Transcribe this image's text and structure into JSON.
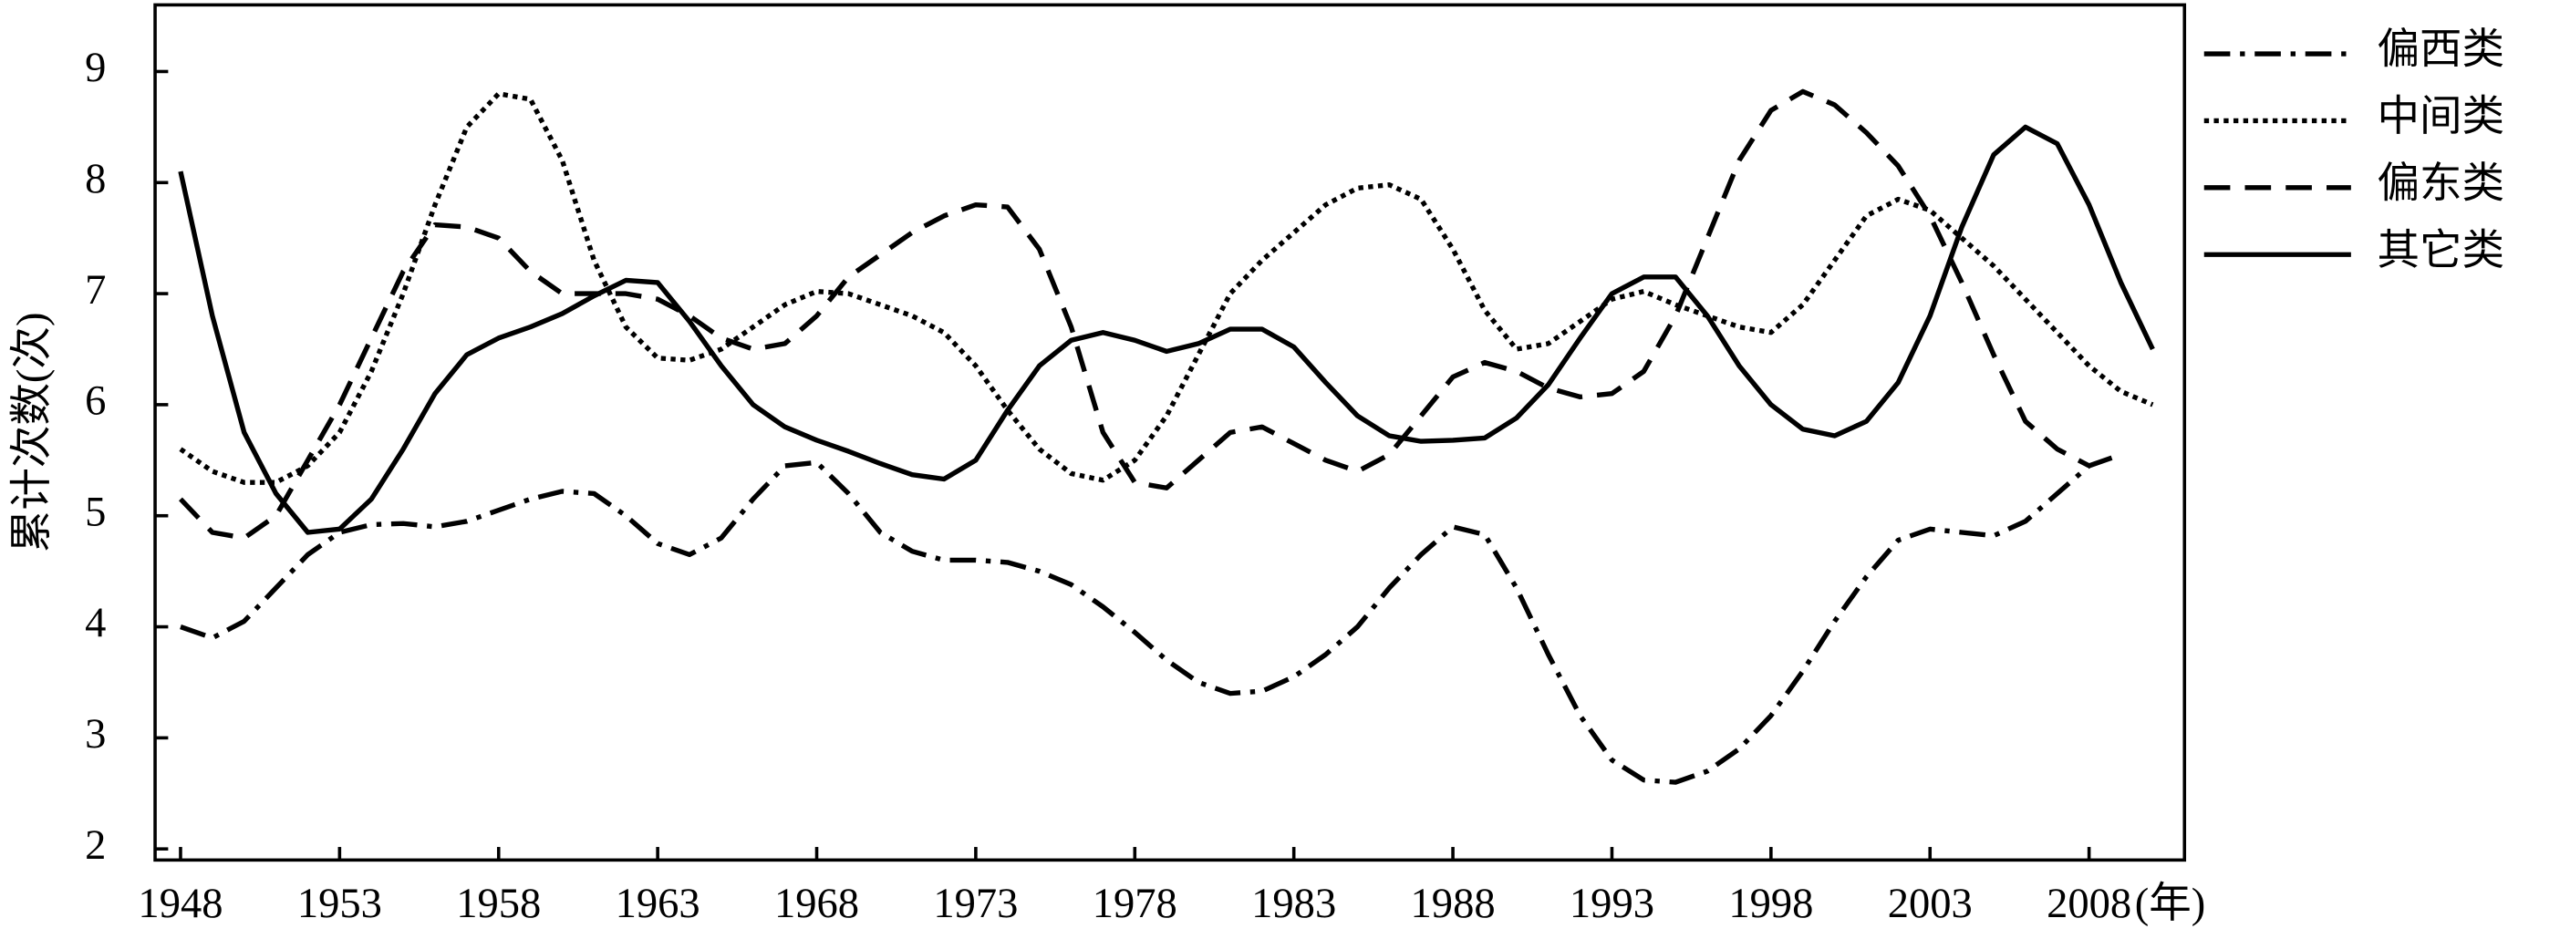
{
  "chart_data": {
    "type": "line",
    "ylabel": "累计次数(次)",
    "xlabel": "(年)",
    "x": [
      1948,
      1949,
      1950,
      1951,
      1952,
      1953,
      1954,
      1955,
      1956,
      1957,
      1958,
      1959,
      1960,
      1961,
      1962,
      1963,
      1964,
      1965,
      1966,
      1967,
      1968,
      1969,
      1970,
      1971,
      1972,
      1973,
      1974,
      1975,
      1976,
      1977,
      1978,
      1979,
      1980,
      1981,
      1982,
      1983,
      1984,
      1985,
      1986,
      1987,
      1988,
      1989,
      1990,
      1991,
      1992,
      1993,
      1994,
      1995,
      1996,
      1997,
      1998,
      1999,
      2000,
      2001,
      2002,
      2003,
      2004,
      2005,
      2006,
      2007,
      2008,
      2009,
      2010
    ],
    "series": [
      {
        "name": "偏西类",
        "color": "#000000",
        "dash": "dashdot",
        "values": [
          4.0,
          3.9,
          4.05,
          4.35,
          4.65,
          4.85,
          4.92,
          4.93,
          4.9,
          4.95,
          5.05,
          5.15,
          5.22,
          5.2,
          5.0,
          4.75,
          4.65,
          4.8,
          5.15,
          5.45,
          5.48,
          5.2,
          4.85,
          4.68,
          4.6,
          4.6,
          4.58,
          4.5,
          4.38,
          4.18,
          3.95,
          3.7,
          3.5,
          3.4,
          3.42,
          3.55,
          3.75,
          4.0,
          4.35,
          4.65,
          4.9,
          4.83,
          4.35,
          3.75,
          3.2,
          2.8,
          2.62,
          2.6,
          2.7,
          2.9,
          3.2,
          3.6,
          4.05,
          4.45,
          4.78,
          4.88,
          4.85,
          4.82,
          4.95,
          5.2,
          5.45,
          5.55,
          null
        ]
      },
      {
        "name": "中间类",
        "color": "#000000",
        "dash": "dotted",
        "values": [
          5.6,
          5.4,
          5.3,
          5.3,
          5.45,
          5.75,
          6.3,
          7.0,
          7.8,
          8.5,
          8.8,
          8.75,
          8.2,
          7.3,
          6.7,
          6.42,
          6.4,
          6.5,
          6.7,
          6.9,
          7.02,
          7.0,
          6.9,
          6.8,
          6.65,
          6.35,
          5.95,
          5.6,
          5.38,
          5.32,
          5.5,
          5.9,
          6.45,
          7.0,
          7.3,
          7.55,
          7.8,
          7.95,
          7.98,
          7.85,
          7.4,
          6.85,
          6.5,
          6.55,
          6.75,
          6.95,
          7.02,
          6.9,
          6.8,
          6.7,
          6.65,
          6.9,
          7.3,
          7.7,
          7.85,
          7.75,
          7.5,
          7.25,
          6.95,
          6.65,
          6.35,
          6.12,
          6.0
        ]
      },
      {
        "name": "偏东类",
        "color": "#000000",
        "dash": "dashed",
        "values": [
          5.15,
          4.85,
          4.8,
          5.0,
          5.5,
          6.0,
          6.6,
          7.2,
          7.62,
          7.6,
          7.5,
          7.2,
          7.0,
          7.0,
          7.0,
          6.95,
          6.8,
          6.6,
          6.5,
          6.55,
          6.8,
          7.15,
          7.35,
          7.55,
          7.7,
          7.8,
          7.78,
          7.4,
          6.7,
          5.75,
          5.3,
          5.25,
          5.5,
          5.75,
          5.8,
          5.65,
          5.5,
          5.4,
          5.55,
          5.9,
          6.25,
          6.38,
          6.3,
          6.15,
          6.07,
          6.1,
          6.3,
          6.8,
          7.5,
          8.2,
          8.65,
          8.82,
          8.7,
          8.45,
          8.15,
          7.7,
          7.1,
          6.45,
          5.85,
          5.6,
          5.45,
          null,
          null
        ]
      },
      {
        "name": "其它类",
        "color": "#000000",
        "dash": "solid",
        "values": [
          8.1,
          6.8,
          5.75,
          5.2,
          4.85,
          4.88,
          5.15,
          5.6,
          6.1,
          6.45,
          6.6,
          6.7,
          6.82,
          6.98,
          7.12,
          7.1,
          6.75,
          6.35,
          6.0,
          5.8,
          5.68,
          5.58,
          5.47,
          5.37,
          5.33,
          5.5,
          5.95,
          6.35,
          6.58,
          6.65,
          6.58,
          6.48,
          6.55,
          6.68,
          6.68,
          6.52,
          6.2,
          5.9,
          5.72,
          5.67,
          5.68,
          5.7,
          5.88,
          6.18,
          6.6,
          7.0,
          7.15,
          7.15,
          6.8,
          6.35,
          6.0,
          5.78,
          5.72,
          5.85,
          6.2,
          6.8,
          7.6,
          8.25,
          8.5,
          8.35,
          7.8,
          7.1,
          6.5
        ]
      }
    ],
    "xlim": [
      1947.2,
      2011
    ],
    "xticks": [
      1948,
      1953,
      1958,
      1963,
      1968,
      1973,
      1978,
      1983,
      1988,
      1993,
      1998,
      2003,
      2008
    ],
    "ylim": [
      1.9,
      9.6
    ],
    "yticks": [
      2,
      3,
      4,
      5,
      6,
      7,
      8,
      9
    ],
    "grid": false,
    "legend": "right"
  }
}
